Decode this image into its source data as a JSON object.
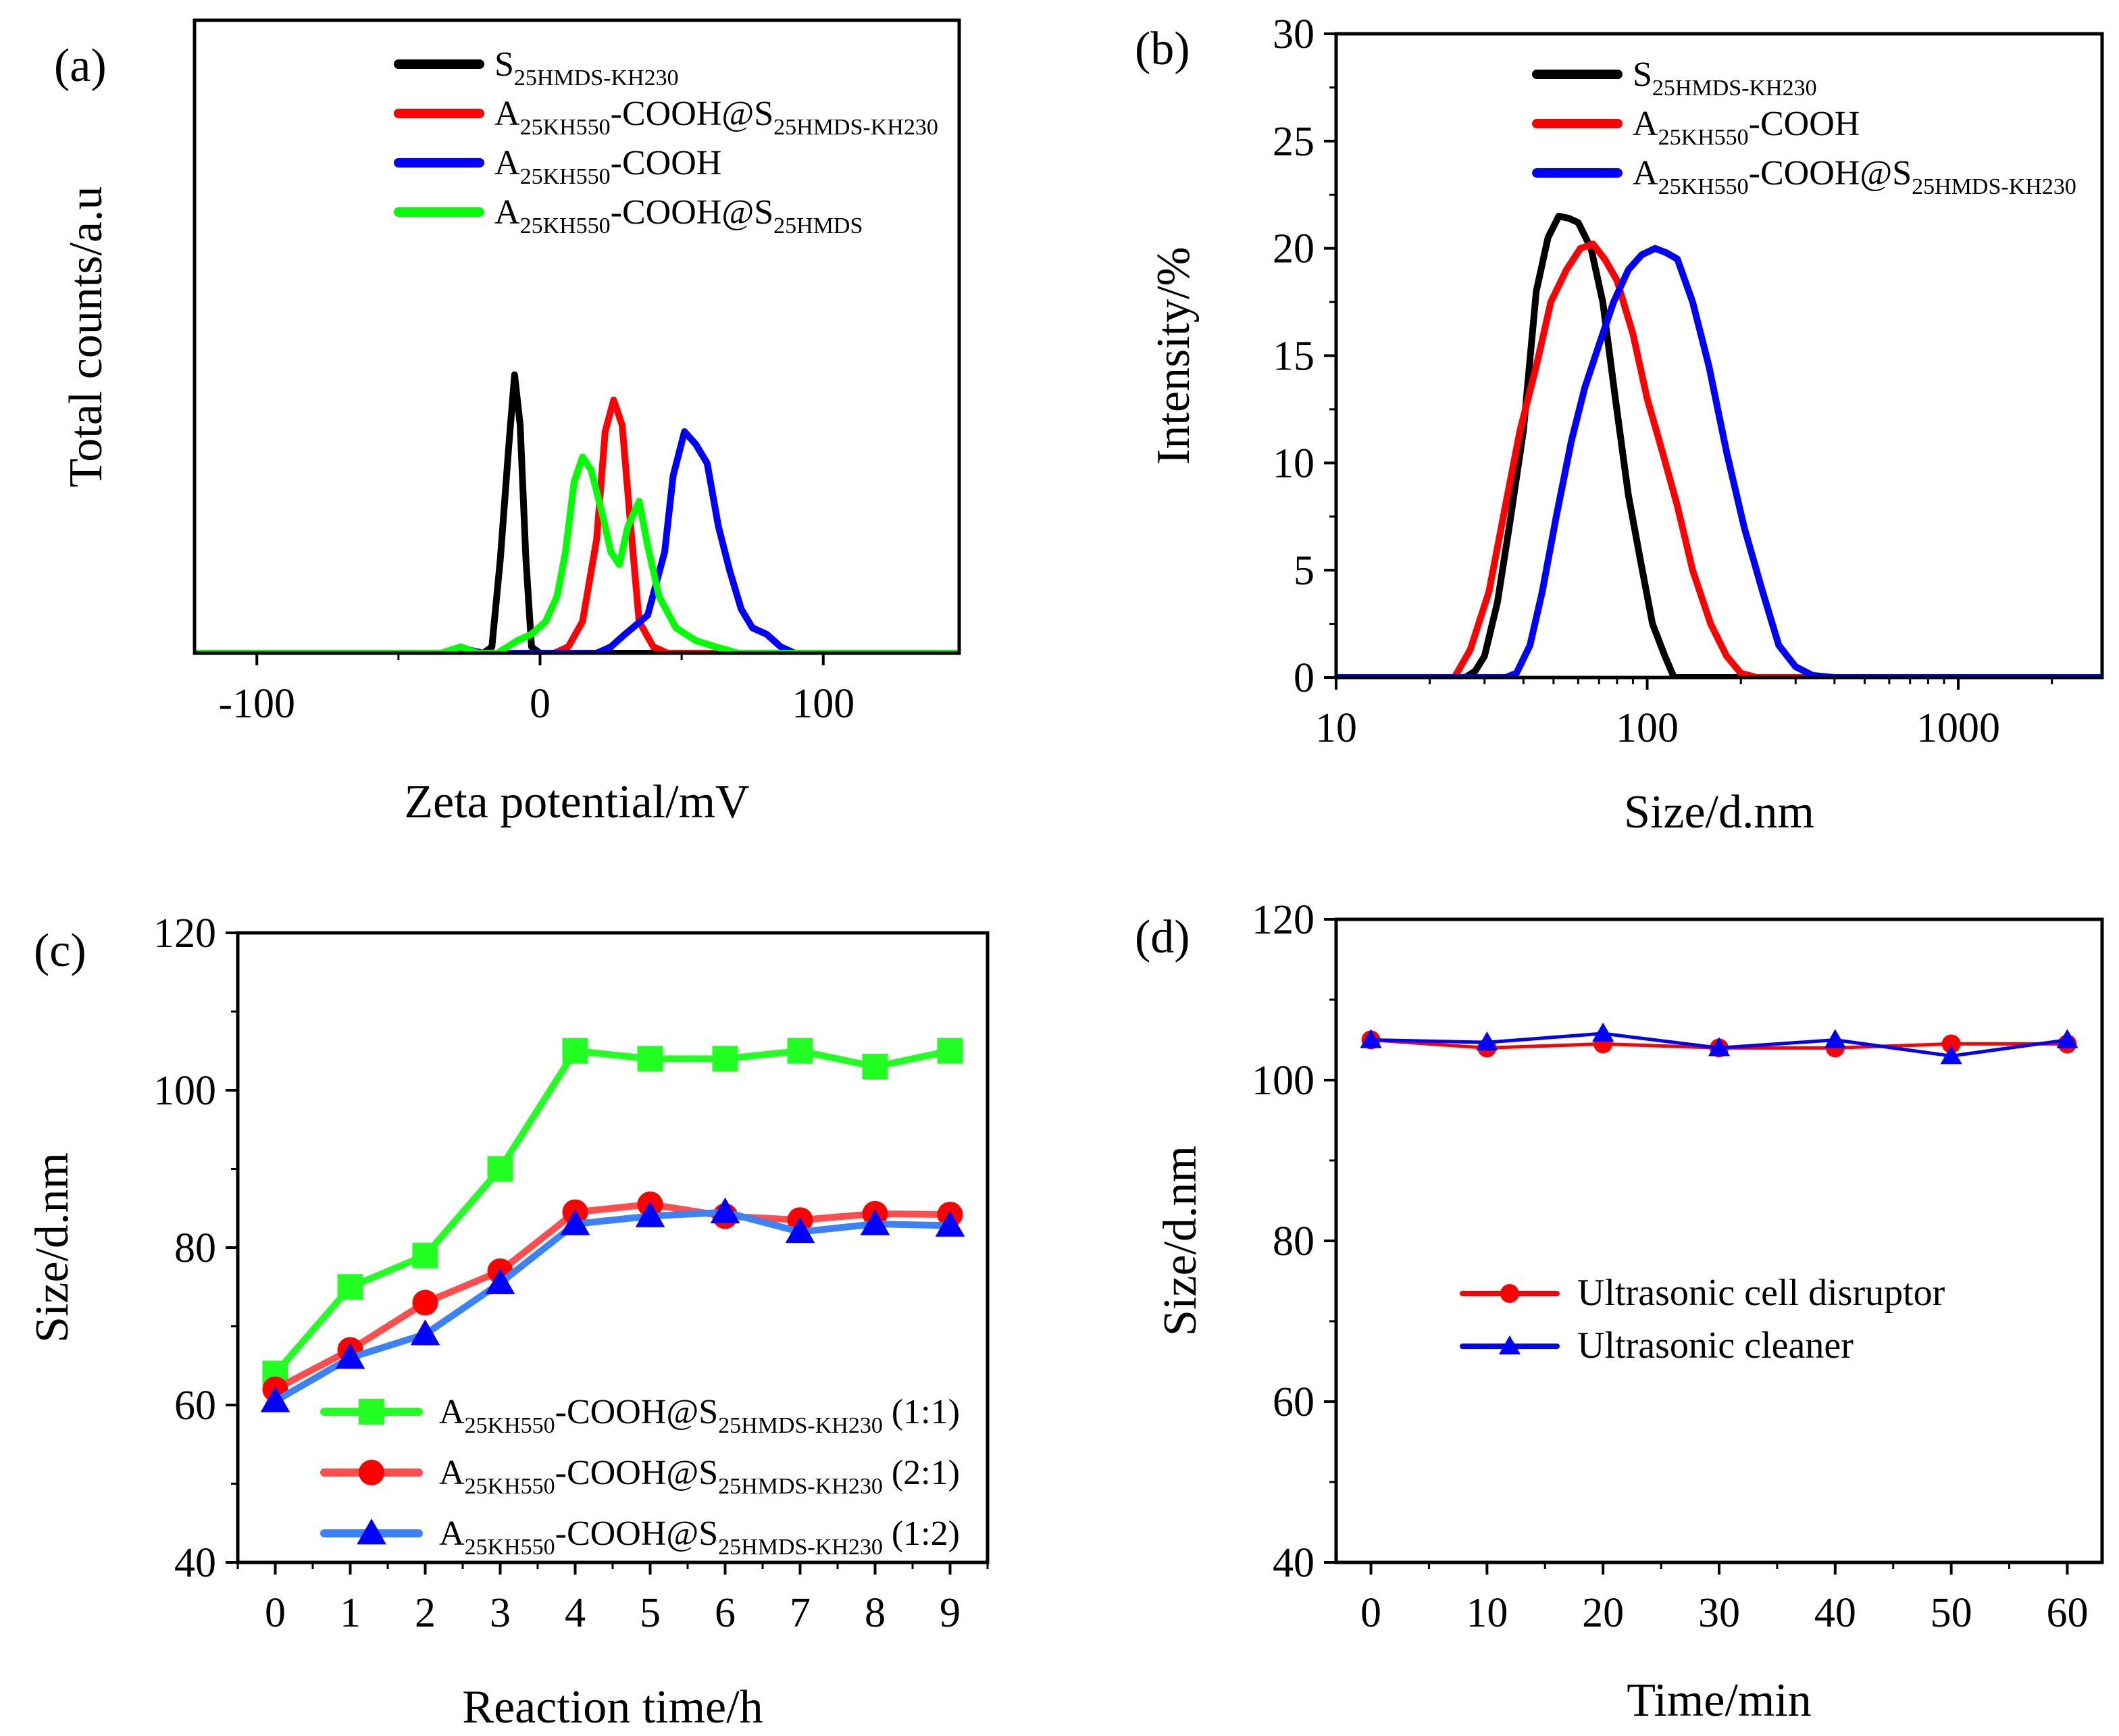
{
  "figure_title": "",
  "chart_data": [
    {
      "panel": "(a)",
      "type": "line",
      "title": "",
      "xlabel": "Zeta potential/mV",
      "ylabel": "Total counts/a.u",
      "xlim": [
        -122,
        148
      ],
      "ylim": [
        0,
        100
      ],
      "xticks": [
        -100,
        0,
        100
      ],
      "xtick_labels": [
        "-100",
        "0",
        "100"
      ],
      "yticks": [],
      "legend_position": "top-center",
      "series": [
        {
          "name": "S25HMDS-KH230",
          "base": "S",
          "sub": "25HMDS-KH230",
          "color": "#000000",
          "x": [
            -122,
            -20,
            -17,
            -14,
            -11,
            -9,
            -7,
            -5,
            -3,
            0,
            30,
            148
          ],
          "y": [
            0,
            0,
            1,
            15,
            33,
            44,
            36,
            15,
            1,
            0,
            0,
            0
          ]
        },
        {
          "name": "A25KH550-COOH@S25HMDS-KH230",
          "base": "A",
          "sub": "25KH550",
          "mid": "-COOH@S",
          "sub2": "25HMDS-KH230",
          "color": "#ff0000",
          "x": [
            -122,
            5,
            10,
            15,
            20,
            23,
            26,
            29,
            32,
            35,
            40,
            45,
            148
          ],
          "y": [
            0,
            0,
            1,
            5,
            18,
            35,
            40,
            36,
            20,
            5,
            1,
            0,
            0
          ]
        },
        {
          "name": "A25KH550-COOH",
          "base": "A",
          "sub": "25KH550",
          "mid": "-COOH",
          "color": "#0000ff",
          "x": [
            -122,
            -30,
            -25,
            -20,
            20,
            25,
            30,
            38,
            44,
            47,
            51,
            55,
            59,
            63,
            67,
            71,
            75,
            80,
            85,
            90,
            148
          ],
          "y": [
            0,
            0,
            0.5,
            0,
            0,
            1,
            3,
            6,
            16,
            28,
            35,
            33,
            30,
            20,
            13,
            7,
            4,
            3,
            1,
            0,
            0
          ]
        },
        {
          "name": "A25KH550-COOH@S25HMDS",
          "base": "A",
          "sub": "25KH550",
          "mid": "-COOH@S",
          "sub2": "25HMDS",
          "color": "#00ff00",
          "x": [
            -122,
            -35,
            -28,
            -22,
            -15,
            -8,
            -3,
            2,
            6,
            9,
            12,
            15,
            18,
            22,
            25,
            28,
            31,
            35,
            38,
            42,
            48,
            55,
            62,
            70,
            148
          ],
          "y": [
            0,
            0,
            1,
            0,
            0,
            2,
            3,
            5,
            9,
            16,
            27,
            31,
            29,
            22,
            16,
            14,
            20,
            24,
            17,
            9,
            4,
            2,
            1,
            0,
            0
          ]
        }
      ]
    },
    {
      "panel": "(b)",
      "type": "line",
      "title": "",
      "xlabel": "Size/d.nm",
      "ylabel": "Intensity/%",
      "xscale": "log",
      "xlim": [
        10,
        2900
      ],
      "ylim": [
        0,
        30
      ],
      "xticks": [
        10,
        100,
        1000
      ],
      "xtick_labels": [
        "10",
        "100",
        "1000"
      ],
      "yticks": [
        0,
        5,
        10,
        15,
        20,
        25,
        30
      ],
      "ytick_labels": [
        "0",
        "5",
        "10",
        "15",
        "20",
        "25",
        "30"
      ],
      "legend_position": "top-right",
      "series": [
        {
          "name": "S25HMDS-KH230",
          "base": "S",
          "sub": "25HMDS-KH230",
          "color": "#000000",
          "x": [
            10,
            26,
            28,
            30,
            33,
            36,
            40,
            44,
            48,
            52,
            56,
            60,
            66,
            72,
            79,
            87,
            95,
            104,
            114,
            122,
            2900
          ],
          "y": [
            0,
            0,
            0.3,
            1,
            3.5,
            7,
            11.5,
            18,
            20.5,
            21.5,
            21.4,
            21.2,
            20,
            17.5,
            13,
            8.5,
            5.5,
            2.5,
            1,
            0,
            0
          ]
        },
        {
          "name": "A25KH550-COOH",
          "base": "A",
          "sub": "25KH550",
          "mid": "-COOH",
          "color": "#ff0000",
          "x": [
            10,
            24,
            27,
            31,
            35,
            39,
            44,
            49,
            55,
            61,
            67,
            73,
            80,
            90,
            100,
            112,
            125,
            140,
            160,
            180,
            200,
            225,
            300,
            2900
          ],
          "y": [
            0,
            0,
            1.3,
            4,
            8,
            11.5,
            14.5,
            17.5,
            19,
            20,
            20.2,
            19.5,
            18.5,
            16,
            13,
            10.5,
            8,
            5,
            2.5,
            1,
            0.2,
            0,
            0,
            0
          ]
        },
        {
          "name": "A25KH550-COOH@S25HMDS-KH230",
          "base": "A",
          "sub": "25KH550",
          "mid": "-COOH@S",
          "sub2": "25HMDS-KH230",
          "color": "#0000ff",
          "x": [
            10,
            35,
            38,
            42,
            46,
            51,
            57,
            63,
            70,
            78,
            87,
            96,
            106,
            115,
            125,
            140,
            158,
            180,
            205,
            235,
            265,
            300,
            340,
            400,
            2900
          ],
          "y": [
            0,
            0,
            0.2,
            1.5,
            4,
            7.5,
            11,
            13.5,
            15.5,
            17.5,
            19,
            19.7,
            20,
            19.8,
            19.5,
            17.5,
            14.5,
            10.5,
            7,
            4,
            1.5,
            0.5,
            0.1,
            0,
            0
          ]
        }
      ]
    },
    {
      "panel": "(c)",
      "type": "line",
      "title": "",
      "xlabel": "Reaction time/h",
      "ylabel": "Size/d.nm",
      "xlim": [
        -0.5,
        9.5
      ],
      "ylim": [
        40,
        120
      ],
      "xticks": [
        0,
        1,
        2,
        3,
        4,
        5,
        6,
        7,
        8,
        9
      ],
      "xtick_labels": [
        "0",
        "1",
        "2",
        "3",
        "4",
        "5",
        "6",
        "7",
        "8",
        "9"
      ],
      "yticks": [
        40,
        60,
        80,
        100,
        120
      ],
      "ytick_labels": [
        "40",
        "60",
        "80",
        "100",
        "120"
      ],
      "legend_position": "bottom-right",
      "series": [
        {
          "name": "A25KH550-COOH@S25HMDS-KH230 (1:1)",
          "base": "A",
          "sub": "25KH550",
          "mid": "-COOH@S",
          "sub2": "25HMDS-KH230",
          "suffix": " (1:1)",
          "color": "#22ff22",
          "marker": "square",
          "x": [
            0,
            1,
            2,
            3,
            4,
            5,
            6,
            7,
            8,
            9
          ],
          "y": [
            64,
            75,
            79,
            90,
            105,
            104,
            104,
            105,
            103,
            105
          ]
        },
        {
          "name": "A25KH550-COOH@S25HMDS-KH230 (2:1)",
          "base": "A",
          "sub": "25KH550",
          "mid": "-COOH@S",
          "sub2": "25HMDS-KH230",
          "suffix": " (2:1)",
          "color": "#ff4d4d",
          "marker": "circle",
          "marker_color": "#ff0000",
          "x": [
            0,
            1,
            2,
            3,
            4,
            5,
            6,
            7,
            8,
            9
          ],
          "y": [
            62,
            67,
            73,
            77,
            84.5,
            85.5,
            84,
            83.5,
            84.3,
            84.2
          ]
        },
        {
          "name": "A25KH550-COOH@S25HMDS-KH230 (1:2)",
          "base": "A",
          "sub": "25KH550",
          "mid": "-COOH@S",
          "sub2": "25HMDS-KH230",
          "suffix": " (1:2)",
          "color": "#3b82f6",
          "marker": "triangle",
          "marker_color": "#0000ff",
          "x": [
            0,
            1,
            2,
            3,
            4,
            5,
            6,
            7,
            8,
            9
          ],
          "y": [
            60.5,
            66,
            69,
            75.5,
            83,
            84,
            84.5,
            82,
            83,
            82.8
          ]
        }
      ]
    },
    {
      "panel": "(d)",
      "type": "line",
      "title": "",
      "xlabel": "Time/min",
      "ylabel": "Size/d.nm",
      "xlim": [
        -3,
        63
      ],
      "ylim": [
        40,
        120
      ],
      "xticks": [
        0,
        10,
        20,
        30,
        40,
        50,
        60
      ],
      "xtick_labels": [
        "0",
        "10",
        "20",
        "30",
        "40",
        "50",
        "60"
      ],
      "yticks": [
        40,
        60,
        80,
        100,
        120
      ],
      "ytick_labels": [
        "40",
        "60",
        "80",
        "100",
        "120"
      ],
      "legend_position": "center",
      "series": [
        {
          "name": "Ultrasonic cell disruptor",
          "color": "#ff0000",
          "marker": "circle",
          "x": [
            0,
            10,
            20,
            30,
            40,
            50,
            60
          ],
          "y": [
            105,
            104,
            104.5,
            104,
            104,
            104.5,
            104.5
          ]
        },
        {
          "name": "Ultrasonic cleaner",
          "color": "#0000ff",
          "marker": "triangle",
          "x": [
            0,
            10,
            20,
            30,
            40,
            50,
            60
          ],
          "y": [
            105,
            104.7,
            105.8,
            104,
            105,
            103,
            105
          ]
        }
      ]
    }
  ]
}
